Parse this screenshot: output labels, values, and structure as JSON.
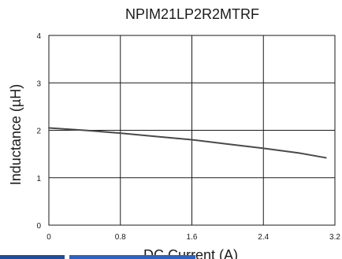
{
  "chart_data": {
    "type": "line",
    "title": "NPIM21LP2R2MTRF",
    "xlabel": "DC Current (A)",
    "ylabel": "Inductance (µH)",
    "xlim": [
      0,
      3.2
    ],
    "ylim": [
      0,
      4
    ],
    "x_ticks": [
      "0",
      "0.8",
      "1.6",
      "2.4",
      "3.2"
    ],
    "y_ticks": [
      "0",
      "1",
      "2",
      "3",
      "4"
    ],
    "grid": true,
    "series": [
      {
        "color": "#4a4a4a",
        "x": [
          0,
          0.4,
          0.8,
          1.2,
          1.6,
          2.0,
          2.4,
          2.8,
          3.1
        ],
        "y": [
          2.05,
          2.0,
          1.94,
          1.87,
          1.8,
          1.71,
          1.62,
          1.52,
          1.42
        ]
      }
    ]
  },
  "accent_colors": {
    "bottom_bar_left": "#1f4e9e",
    "bottom_bar_right": "#2b63c4"
  }
}
